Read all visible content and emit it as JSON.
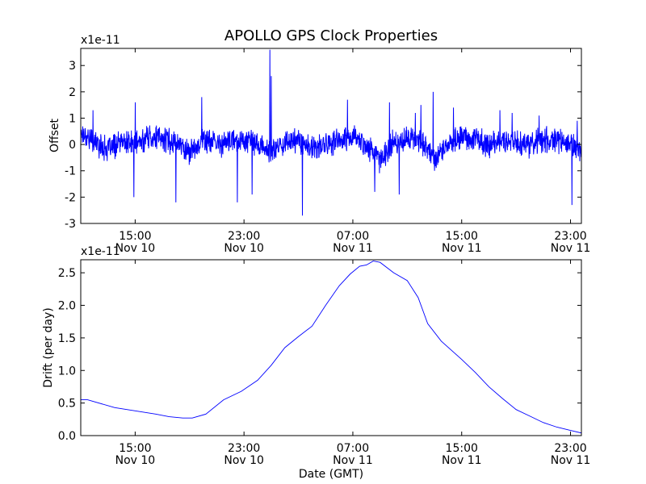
{
  "chart_data": [
    {
      "type": "line",
      "title": "APOLLO GPS Clock Properties",
      "ylabel": "Offset",
      "xlabel": "",
      "scale_label": "x1e-11",
      "x_unit": "hours since Nov 10 11:00 GMT",
      "xlim": [
        0,
        36.8
      ],
      "ylim": [
        -3,
        3.65
      ],
      "yticks": [
        -3,
        -2,
        -1,
        0,
        1,
        2,
        3
      ],
      "ytick_labels": [
        "-3",
        "-2",
        "-1",
        "0",
        "1",
        "2",
        "3"
      ],
      "xticks": [
        4,
        12,
        20,
        28,
        36
      ],
      "xtick_labels": [
        [
          "15:00",
          "Nov 10"
        ],
        [
          "23:00",
          "Nov 10"
        ],
        [
          "07:00",
          "Nov 11"
        ],
        [
          "15:00",
          "Nov 11"
        ],
        [
          "23:00",
          "Nov 11"
        ]
      ],
      "color": "#0000ff",
      "series": [
        {
          "name": "",
          "noise": {
            "base": 0.35,
            "seed": 17
          },
          "x": [
            0,
            1,
            2,
            3,
            4,
            5,
            6,
            7,
            8,
            9,
            10,
            11,
            12,
            13,
            14,
            15,
            16,
            17,
            18,
            19,
            20,
            21,
            22,
            23,
            24,
            25,
            26,
            27,
            28,
            29,
            30,
            31,
            32,
            33,
            34,
            35,
            36,
            36.8
          ],
          "values": [
            0.5,
            0.1,
            -0.2,
            0.1,
            0.0,
            0.3,
            0.2,
            0.1,
            -0.3,
            0.2,
            0.0,
            0.1,
            0.2,
            0.0,
            -0.3,
            0.1,
            0.2,
            -0.2,
            0.0,
            0.1,
            0.3,
            0.0,
            -0.6,
            0.1,
            0.2,
            0.2,
            -0.5,
            0.0,
            0.3,
            0.2,
            -0.1,
            0.2,
            0.1,
            0.0,
            0.2,
            0.1,
            0.0,
            -0.2
          ],
          "spikes": [
            [
              0.9,
              1.3
            ],
            [
              3.9,
              -2.0
            ],
            [
              4.0,
              1.6
            ],
            [
              7.0,
              -2.2
            ],
            [
              8.9,
              1.8
            ],
            [
              11.5,
              -2.2
            ],
            [
              12.6,
              -1.9
            ],
            [
              13.9,
              3.6
            ],
            [
              14.0,
              2.6
            ],
            [
              16.3,
              -2.7
            ],
            [
              19.6,
              1.7
            ],
            [
              21.6,
              -1.8
            ],
            [
              22.7,
              1.6
            ],
            [
              23.4,
              -1.9
            ],
            [
              24.6,
              1.2
            ],
            [
              25.0,
              1.5
            ],
            [
              25.9,
              2.0
            ],
            [
              26.0,
              -1.0
            ],
            [
              27.4,
              1.4
            ],
            [
              30.8,
              1.3
            ],
            [
              31.7,
              1.2
            ],
            [
              33.7,
              1.1
            ],
            [
              36.1,
              -2.3
            ],
            [
              36.5,
              0.9
            ]
          ]
        }
      ]
    },
    {
      "type": "line",
      "title": "",
      "ylabel": "Drift (per day)",
      "xlabel": "Date (GMT)",
      "scale_label": "x1e-11",
      "x_unit": "hours since Nov 10 11:00 GMT",
      "xlim": [
        0,
        36.8
      ],
      "ylim": [
        0,
        2.7
      ],
      "yticks": [
        0,
        0.5,
        1.0,
        1.5,
        2.0,
        2.5
      ],
      "ytick_labels": [
        "0.0",
        "0.5",
        "1.0",
        "1.5",
        "2.0",
        "2.5"
      ],
      "xticks": [
        4,
        12,
        20,
        28,
        36
      ],
      "xtick_labels": [
        [
          "15:00",
          "Nov 10"
        ],
        [
          "23:00",
          "Nov 10"
        ],
        [
          "07:00",
          "Nov 11"
        ],
        [
          "15:00",
          "Nov 11"
        ],
        [
          "23:00",
          "Nov 11"
        ]
      ],
      "color": "#0000ff",
      "series": [
        {
          "name": "",
          "x": [
            0,
            0.5,
            2.5,
            4,
            5.5,
            6.5,
            7.5,
            8.2,
            9.2,
            10.5,
            11.8,
            13,
            14,
            15,
            16,
            17,
            18,
            19,
            19.8,
            20.5,
            21,
            21.5,
            22,
            23,
            24,
            24.8,
            25.5,
            26.5,
            28,
            29,
            30,
            31,
            32,
            33,
            34,
            35,
            36,
            36.8
          ],
          "values": [
            0.55,
            0.55,
            0.43,
            0.38,
            0.33,
            0.29,
            0.27,
            0.27,
            0.33,
            0.55,
            0.68,
            0.85,
            1.08,
            1.35,
            1.52,
            1.68,
            2.0,
            2.3,
            2.48,
            2.6,
            2.62,
            2.68,
            2.66,
            2.5,
            2.38,
            2.12,
            1.72,
            1.45,
            1.17,
            0.97,
            0.75,
            0.57,
            0.4,
            0.3,
            0.2,
            0.13,
            0.08,
            0.04
          ]
        }
      ]
    }
  ]
}
